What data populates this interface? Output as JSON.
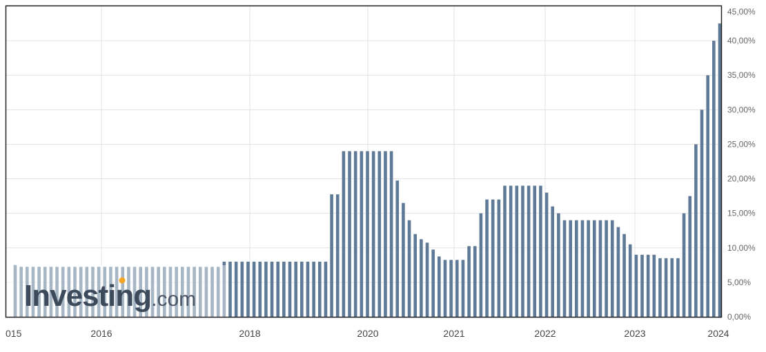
{
  "watermark": {
    "brand": "Investing",
    "suffix": ".com",
    "accent": "#f5a623"
  },
  "colors": {
    "bar": "#5f7a96",
    "grid": "#e3e3e3",
    "frame": "#222222"
  },
  "chart_data": {
    "type": "bar",
    "title": "",
    "xlabel": "",
    "ylabel": "",
    "ylim": [
      0,
      45
    ],
    "y_ticks": [
      0,
      5,
      10,
      15,
      20,
      25,
      30,
      35,
      40,
      45
    ],
    "y_tick_labels": [
      "0,00%",
      "5,00%",
      "10,00%",
      "15,00%",
      "20,00%",
      "25,00%",
      "30,00%",
      "35,00%",
      "40,00%",
      "45,00%"
    ],
    "x_tick_labels": [
      "015",
      "2016",
      "2018",
      "2020",
      "2021",
      "2022",
      "2023",
      "2024"
    ],
    "grid": true,
    "y_axis_position": "right",
    "values": [
      7.5,
      7.25,
      7.25,
      7.25,
      7.25,
      7.25,
      7.25,
      7.25,
      7.25,
      7.25,
      7.25,
      7.25,
      7.25,
      7.25,
      7.25,
      7.25,
      7.25,
      7.25,
      7.25,
      7.25,
      7.25,
      7.25,
      7.25,
      7.25,
      7.25,
      7.25,
      7.25,
      7.25,
      7.25,
      7.25,
      7.25,
      7.25,
      7.25,
      7.25,
      7.25,
      8,
      8,
      8,
      8,
      8,
      8,
      8,
      8,
      8,
      8,
      8,
      8,
      8,
      8,
      8,
      8,
      8,
      8,
      17.75,
      17.75,
      24,
      24,
      24,
      24,
      24,
      24,
      24,
      24,
      24,
      19.75,
      16.5,
      14,
      12,
      11.25,
      10.75,
      9.75,
      8.75,
      8.25,
      8.25,
      8.25,
      8.25,
      10.25,
      10.25,
      15,
      17,
      17,
      17,
      19,
      19,
      19,
      19,
      19,
      19,
      19,
      18,
      16,
      15,
      14,
      14,
      14,
      14,
      14,
      14,
      14,
      14,
      14,
      13,
      12,
      10.5,
      9,
      9,
      9,
      9,
      8.5,
      8.5,
      8.5,
      8.5,
      15,
      17.5,
      25,
      30,
      35,
      40,
      42.5
    ]
  }
}
